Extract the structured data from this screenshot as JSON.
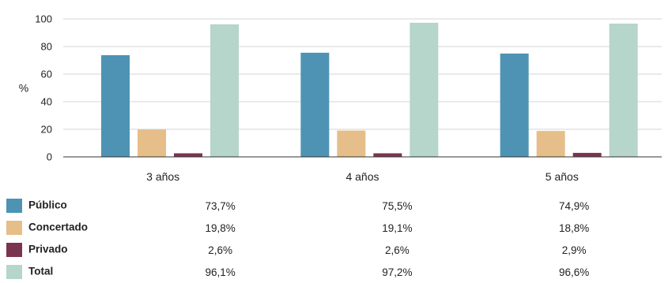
{
  "chart_data": {
    "type": "bar",
    "categories": [
      "3 años",
      "4 años",
      "5 años"
    ],
    "ylabel": "%",
    "xlabel": "",
    "ylim": [
      0,
      100
    ],
    "yticks": [
      0,
      20,
      40,
      60,
      80,
      100
    ],
    "grid": true,
    "legend": "table-below",
    "series": [
      {
        "name": "Público",
        "color": "#4e93b3",
        "values": [
          73.7,
          75.5,
          74.9
        ],
        "labels": [
          "73,7%",
          "75,5%",
          "74,9%"
        ]
      },
      {
        "name": "Concertado",
        "color": "#e6be8a",
        "values": [
          19.8,
          19.1,
          18.8
        ],
        "labels": [
          "19,8%",
          "19,1%",
          "18,8%"
        ]
      },
      {
        "name": "Privado",
        "color": "#7b3450",
        "values": [
          2.6,
          2.6,
          2.9
        ],
        "labels": [
          "2,6%",
          "2,6%",
          "2,9%"
        ]
      },
      {
        "name": "Total",
        "color": "#b6d5cb",
        "values": [
          96.1,
          97.2,
          96.6
        ],
        "labels": [
          "96,1%",
          "97,2%",
          "96,6%"
        ]
      }
    ]
  }
}
